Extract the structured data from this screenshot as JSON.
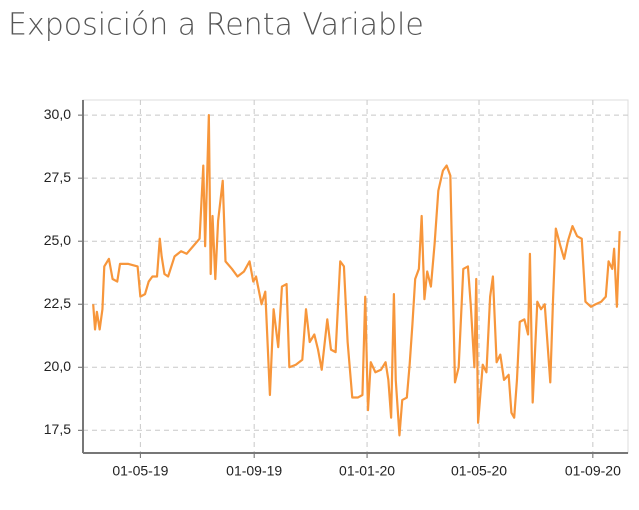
{
  "chart_data": {
    "type": "line",
    "title": "Exposición a Renta Variable",
    "color": "#f7963b",
    "grid": true,
    "xlim": [
      "2019-02-28",
      "2020-10-09"
    ],
    "xticks": [
      {
        "value": "2019-05-01",
        "label": "01-05-19"
      },
      {
        "value": "2019-09-01",
        "label": "01-09-19"
      },
      {
        "value": "2020-01-01",
        "label": "01-01-20"
      },
      {
        "value": "2020-05-01",
        "label": "01-05-20"
      },
      {
        "value": "2020-09-01",
        "label": "01-09-20"
      }
    ],
    "ylim": [
      16.6,
      30.6
    ],
    "yticks": [
      {
        "value": 17.5,
        "label": "17,5"
      },
      {
        "value": 20,
        "label": "20,0"
      },
      {
        "value": 22.5,
        "label": "22,5"
      },
      {
        "value": 25,
        "label": "25,0"
      },
      {
        "value": 27.5,
        "label": "27,5"
      },
      {
        "value": 30,
        "label": "30,0"
      }
    ],
    "x": [
      "2019-03-11",
      "2019-03-13",
      "2019-03-15",
      "2019-03-18",
      "2019-03-21",
      "2019-03-23",
      "2019-03-28",
      "2019-04-01",
      "2019-04-06",
      "2019-04-09",
      "2019-04-18",
      "2019-04-28",
      "2019-05-01",
      "2019-05-06",
      "2019-05-10",
      "2019-05-14",
      "2019-05-19",
      "2019-05-22",
      "2019-05-24",
      "2019-05-27",
      "2019-05-31",
      "2019-06-07",
      "2019-06-14",
      "2019-06-20",
      "2019-06-27",
      "2019-07-04",
      "2019-07-08",
      "2019-07-10",
      "2019-07-14",
      "2019-07-16",
      "2019-07-18",
      "2019-07-21",
      "2019-07-24",
      "2019-07-29",
      "2019-08-01",
      "2019-08-08",
      "2019-08-14",
      "2019-08-21",
      "2019-08-27",
      "2019-08-31",
      "2019-09-03",
      "2019-09-09",
      "2019-09-13",
      "2019-09-18",
      "2019-09-22",
      "2019-09-27",
      "2019-10-01",
      "2019-10-06",
      "2019-10-09",
      "2019-10-16",
      "2019-10-23",
      "2019-10-27",
      "2019-10-31",
      "2019-11-05",
      "2019-11-09",
      "2019-11-13",
      "2019-11-19",
      "2019-11-23",
      "2019-11-28",
      "2019-12-03",
      "2019-12-07",
      "2019-12-11",
      "2019-12-16",
      "2019-12-22",
      "2019-12-27",
      "2019-12-30",
      "2020-01-02",
      "2020-01-05",
      "2020-01-10",
      "2020-01-16",
      "2020-01-21",
      "2020-01-24",
      "2020-01-27",
      "2020-01-30",
      "2020-02-01",
      "2020-02-05",
      "2020-02-08",
      "2020-02-13",
      "2020-02-16",
      "2020-02-19",
      "2020-02-22",
      "2020-02-26",
      "2020-02-29",
      "2020-03-03",
      "2020-03-06",
      "2020-03-10",
      "2020-03-14",
      "2020-03-18",
      "2020-03-23",
      "2020-03-27",
      "2020-03-31",
      "2020-04-05",
      "2020-04-09",
      "2020-04-14",
      "2020-04-19",
      "2020-04-22",
      "2020-04-26",
      "2020-04-28",
      "2020-04-30",
      "2020-05-05",
      "2020-05-09",
      "2020-05-13",
      "2020-05-16",
      "2020-05-20",
      "2020-05-24",
      "2020-05-28",
      "2020-06-02",
      "2020-06-05",
      "2020-06-08",
      "2020-06-11",
      "2020-06-14",
      "2020-06-19",
      "2020-06-23",
      "2020-06-25",
      "2020-06-28",
      "2020-07-03",
      "2020-07-07",
      "2020-07-11",
      "2020-07-17",
      "2020-07-20",
      "2020-07-23",
      "2020-07-28",
      "2020-08-01",
      "2020-08-05",
      "2020-08-10",
      "2020-08-15",
      "2020-08-20",
      "2020-08-24",
      "2020-08-30",
      "2020-09-04",
      "2020-09-10",
      "2020-09-15",
      "2020-09-18",
      "2020-09-22",
      "2020-09-24",
      "2020-09-27",
      "2020-09-30"
    ],
    "values": [
      22.5,
      21.5,
      22.2,
      21.5,
      22.3,
      24.0,
      24.3,
      23.5,
      23.4,
      24.1,
      24.1,
      24.0,
      22.8,
      22.9,
      23.4,
      23.6,
      23.6,
      25.1,
      24.4,
      23.7,
      23.6,
      24.4,
      24.6,
      24.5,
      24.8,
      25.1,
      28.0,
      24.8,
      30.0,
      23.7,
      26.0,
      23.5,
      25.8,
      27.4,
      24.2,
      23.9,
      23.6,
      23.8,
      24.2,
      23.4,
      23.6,
      22.5,
      23.0,
      18.9,
      22.3,
      20.8,
      23.2,
      23.3,
      20.0,
      20.1,
      20.3,
      22.3,
      21.0,
      21.3,
      20.7,
      19.9,
      21.9,
      20.7,
      20.6,
      24.2,
      24.0,
      21.0,
      18.8,
      18.8,
      18.9,
      22.8,
      18.3,
      20.2,
      19.8,
      19.9,
      20.2,
      19.5,
      18.0,
      22.9,
      19.5,
      17.3,
      18.7,
      18.8,
      20.1,
      21.7,
      23.5,
      23.9,
      26.0,
      22.7,
      23.8,
      23.2,
      24.9,
      27.0,
      27.8,
      28.0,
      27.6,
      19.4,
      20.0,
      23.9,
      24.0,
      22.5,
      20.0,
      23.5,
      17.8,
      20.1,
      19.8,
      22.8,
      23.6,
      20.2,
      20.5,
      19.5,
      19.7,
      18.2,
      18.0,
      19.5,
      21.8,
      21.9,
      21.3,
      24.5,
      18.6,
      22.6,
      22.3,
      22.5,
      19.4,
      22.7,
      25.5,
      24.8,
      24.3,
      25.0,
      25.6,
      25.2,
      25.1,
      22.6,
      22.4,
      22.5,
      22.6,
      22.8,
      24.2,
      23.9,
      24.7,
      22.4,
      25.4
    ]
  }
}
